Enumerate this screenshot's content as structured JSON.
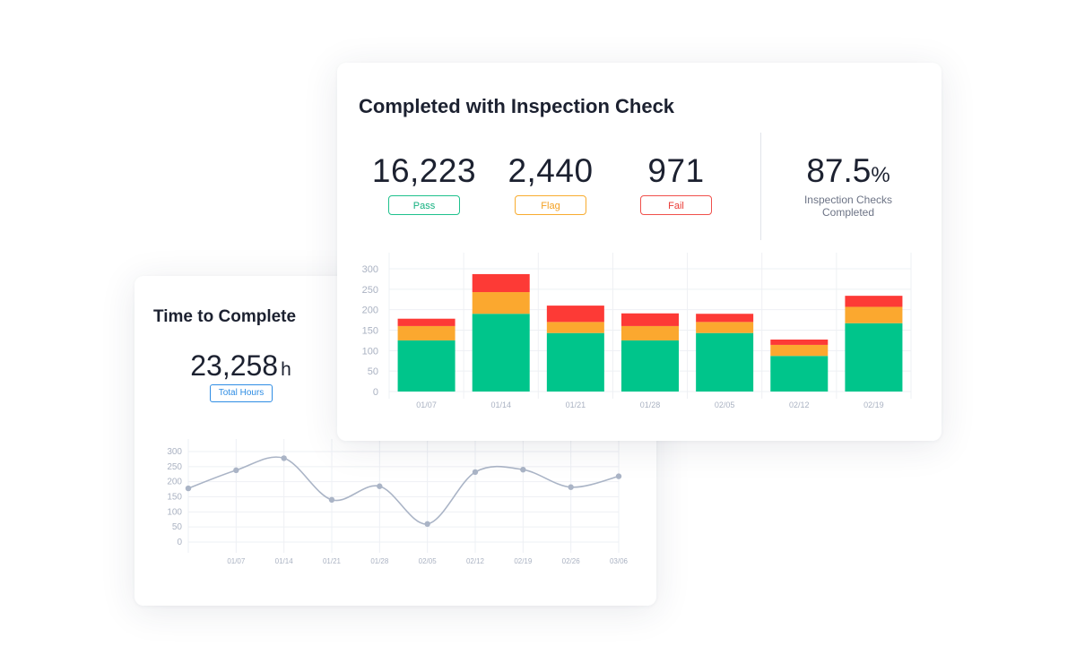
{
  "time_card": {
    "title": "Time to Complete",
    "total_value": "23,258",
    "total_unit": "h",
    "total_label": "Total Hours"
  },
  "inspection_card": {
    "title": "Completed with Inspection Check",
    "pass": {
      "value": "16,223",
      "label": "Pass"
    },
    "flag": {
      "value": "2,440",
      "label": "Flag"
    },
    "fail": {
      "value": "971",
      "label": "Fail"
    },
    "completion": {
      "value": "87.5",
      "symbol": "%",
      "label_line1": "Inspection Checks",
      "label_line2": "Completed"
    }
  },
  "colors": {
    "pass": "#00c58b",
    "flag": "#fba82f",
    "fail": "#fd3a36",
    "line": "#aab4c6",
    "grid": "#eef0f4",
    "tick": "#aab2c2"
  },
  "chart_data": [
    {
      "type": "bar",
      "stacked": true,
      "categories": [
        "01/07",
        "01/14",
        "01/21",
        "01/28",
        "02/05",
        "02/12",
        "02/19"
      ],
      "series": [
        {
          "name": "Pass",
          "values": [
            125,
            190,
            143,
            125,
            143,
            87,
            167
          ]
        },
        {
          "name": "Flag",
          "values": [
            35,
            53,
            27,
            35,
            27,
            27,
            40
          ]
        },
        {
          "name": "Fail",
          "values": [
            18,
            44,
            40,
            31,
            20,
            13,
            27
          ]
        }
      ],
      "yticks": [
        0,
        50,
        100,
        150,
        200,
        250,
        300
      ],
      "ylim": [
        0,
        300
      ],
      "grid": true
    },
    {
      "type": "line",
      "x": [
        "",
        "01/07",
        "01/14",
        "01/21",
        "01/28",
        "02/05",
        "02/12",
        "02/19",
        "02/26",
        "03/06"
      ],
      "values": [
        178,
        238,
        278,
        140,
        185,
        60,
        232,
        240,
        182,
        218
      ],
      "yticks": [
        0,
        50,
        100,
        150,
        200,
        250,
        300
      ],
      "ylim": [
        0,
        300
      ],
      "grid": true
    }
  ]
}
